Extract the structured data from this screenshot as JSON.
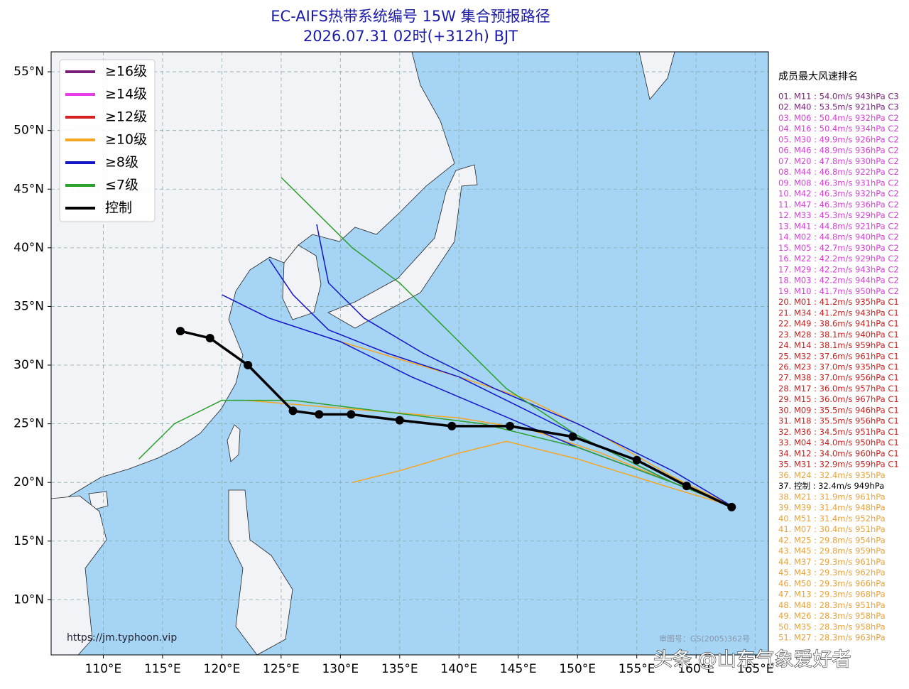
{
  "chart_data": {
    "type": "track-map",
    "title": "EC-AIFS热带系统编号 15W 集合预报路径",
    "subtitle": "2026.07.31 02时(+312h) BJT",
    "xlim": [
      105.6,
      166.1
    ],
    "ylim": [
      5.3,
      56.7
    ],
    "xticks": [
      {
        "value": 110,
        "label": "110°E"
      },
      {
        "value": 115,
        "label": "115°E"
      },
      {
        "value": 120,
        "label": "120°E"
      },
      {
        "value": 125,
        "label": "125°E"
      },
      {
        "value": 130,
        "label": "130°E"
      },
      {
        "value": 135,
        "label": "135°E"
      },
      {
        "value": 140,
        "label": "140°E"
      },
      {
        "value": 145,
        "label": "145°E"
      },
      {
        "value": 150,
        "label": "150°E"
      },
      {
        "value": 155,
        "label": "155°E"
      },
      {
        "value": 160,
        "label": "160°E"
      },
      {
        "value": 165,
        "label": "165°E"
      }
    ],
    "yticks": [
      {
        "value": 10,
        "label": "10°N"
      },
      {
        "value": 15,
        "label": "15°N"
      },
      {
        "value": 20,
        "label": "20°N"
      },
      {
        "value": 25,
        "label": "25°N"
      },
      {
        "value": 30,
        "label": "30°N"
      },
      {
        "value": 35,
        "label": "35°N"
      },
      {
        "value": 40,
        "label": "40°N"
      },
      {
        "value": 45,
        "label": "45°N"
      },
      {
        "value": 50,
        "label": "50°N"
      },
      {
        "value": 55,
        "label": "55°N"
      }
    ],
    "grid": true,
    "legend": [
      {
        "label": "≥16级",
        "color": "#7b1f7b"
      },
      {
        "label": "≥14级",
        "color": "#e83de8"
      },
      {
        "label": "≥12级",
        "color": "#d62020"
      },
      {
        "label": "≥10级",
        "color": "#f5a623"
      },
      {
        "label": "≥8级",
        "color": "#1515c8"
      },
      {
        "label": "≤7级",
        "color": "#2ca02c"
      },
      {
        "label": "控制",
        "color": "#000000"
      }
    ],
    "ensemble": [
      {
        "color": "#f5a623",
        "lon": [
          163,
          158,
          152,
          146,
          140,
          134,
          128,
          122
        ],
        "lat": [
          18,
          20,
          22.5,
          24.5,
          25.5,
          26,
          26.5,
          27
        ]
      },
      {
        "color": "#f5a623",
        "lon": [
          163,
          158,
          152,
          146,
          140,
          135,
          130
        ],
        "lat": [
          18,
          20.5,
          24,
          27,
          29,
          30.5,
          32
        ]
      },
      {
        "color": "#f5a623",
        "lon": [
          163,
          158,
          150,
          144,
          140,
          135,
          131
        ],
        "lat": [
          18,
          19.5,
          22,
          23.5,
          22.5,
          21,
          20
        ]
      },
      {
        "color": "#1515c8",
        "lon": [
          163,
          158,
          152,
          146,
          140,
          134,
          129,
          126,
          124
        ],
        "lat": [
          18,
          20,
          23,
          26,
          29,
          31,
          33,
          36,
          39
        ]
      },
      {
        "color": "#1515c8",
        "lon": [
          163,
          158,
          150,
          143,
          137,
          132,
          129,
          128
        ],
        "lat": [
          18,
          21,
          25,
          28,
          31,
          34,
          37,
          42
        ]
      },
      {
        "color": "#1515c8",
        "lon": [
          163,
          158,
          150,
          143,
          136,
          130,
          124,
          120
        ],
        "lat": [
          18,
          20,
          23,
          26,
          29,
          32,
          34,
          36
        ]
      },
      {
        "color": "#2ca02c",
        "lon": [
          163,
          158,
          150,
          144,
          139,
          135,
          131,
          128,
          125
        ],
        "lat": [
          18,
          20,
          24,
          28,
          33,
          37,
          40,
          43,
          46
        ]
      },
      {
        "color": "#2ca02c",
        "lon": [
          163,
          158,
          150,
          142,
          134,
          126,
          120,
          116,
          113
        ],
        "lat": [
          18,
          20,
          23,
          25,
          26,
          27,
          27,
          25,
          22
        ]
      }
    ],
    "control": {
      "color": "#000000",
      "lon": [
        163.0,
        159.2,
        155.0,
        149.6,
        144.3,
        139.4,
        135.0,
        130.9,
        128.2,
        126.0,
        122.2,
        119.0,
        116.5
      ],
      "lat": [
        17.9,
        19.7,
        21.9,
        23.9,
        24.8,
        24.8,
        25.3,
        25.8,
        25.8,
        26.1,
        30.0,
        32.3,
        32.9
      ]
    },
    "ranking": {
      "title": "成员最大风速排名",
      "groups": [
        {
          "color": "#7a1e7a",
          "items": [
            "01. M11 : 54.0m/s 943hPa C3",
            "02. M40 : 53.5m/s 921hPa C3"
          ]
        },
        {
          "color": "#d63fd6",
          "items": [
            "03. M06 : 50.4m/s 932hPa C2",
            "04. M16 : 50.4m/s 934hPa C2",
            "05. M30 : 49.9m/s 926hPa C2",
            "06. M46 : 48.9m/s 936hPa C2",
            "07. M20 : 47.8m/s 930hPa C2",
            "08. M44 : 46.8m/s 922hPa C2",
            "09. M08 : 46.3m/s 931hPa C2",
            "10. M42 : 46.3m/s 932hPa C2",
            "11. M47 : 46.3m/s 936hPa C2",
            "12. M33 : 45.3m/s 929hPa C2",
            "13. M41 : 44.8m/s 921hPa C2",
            "14. M02 : 44.8m/s 940hPa C2",
            "15. M05 : 42.7m/s 930hPa C2",
            "16. M22 : 42.2m/s 929hPa C2",
            "17. M29 : 42.2m/s 943hPa C2",
            "18. M03 : 42.2m/s 944hPa C2",
            "19. M10 : 41.7m/s 950hPa C2"
          ]
        },
        {
          "color": "#c81e1e",
          "items": [
            "20. M01 : 41.2m/s 935hPa C1",
            "21. M34 : 41.2m/s 943hPa C1",
            "22. M49 : 38.6m/s 941hPa C1",
            "23. M28 : 38.1m/s 940hPa C1",
            "24. M14 : 38.1m/s 959hPa C1",
            "25. M32 : 37.6m/s 961hPa C1",
            "26. M23 : 37.0m/s 935hPa C1",
            "27. M38 : 37.0m/s 956hPa C1",
            "28. M17 : 36.0m/s 957hPa C1",
            "29. M15 : 36.0m/s 967hPa C1",
            "30. M09 : 35.5m/s 946hPa C1",
            "31. M18 : 35.5m/s 956hPa C1",
            "32. M36 : 34.5m/s 951hPa C1",
            "33. M04 : 34.0m/s 950hPa C1",
            "34. M12 : 34.0m/s 960hPa C1",
            "35. M31 : 32.9m/s 959hPa C1"
          ]
        },
        {
          "color": "#e8a23a",
          "items": [
            "36. M24 : 32.4m/s 935hPa"
          ]
        },
        {
          "color": "#000000",
          "items": [
            "37. 控制 : 32.4m/s 949hPa"
          ]
        },
        {
          "color": "#e8a23a",
          "items": [
            "38. M21 : 31.9m/s 961hPa",
            "39. M39 : 31.4m/s 948hPa",
            "40. M51 : 31.4m/s 952hPa",
            "41. M07 : 30.4m/s 951hPa",
            "42. M25 : 29.8m/s 954hPa",
            "43. M45 : 29.8m/s 959hPa",
            "44. M37 : 29.3m/s 961hPa",
            "45. M43 : 29.3m/s 962hPa",
            "46. M50 : 29.3m/s 966hPa",
            "47. M13 : 29.3m/s 968hPa",
            "48. M48 : 28.3m/s 951hPa",
            "49. M26 : 28.3m/s 958hPa",
            "50. M35 : 28.3m/s 958hPa",
            "51. M27 : 28.3m/s 963hPa"
          ]
        }
      ]
    },
    "source": "https://jm.typhoon.vip",
    "map_approval": "审图号：GS(2005)362号",
    "watermark": "头条 @山东气象爱好者"
  }
}
